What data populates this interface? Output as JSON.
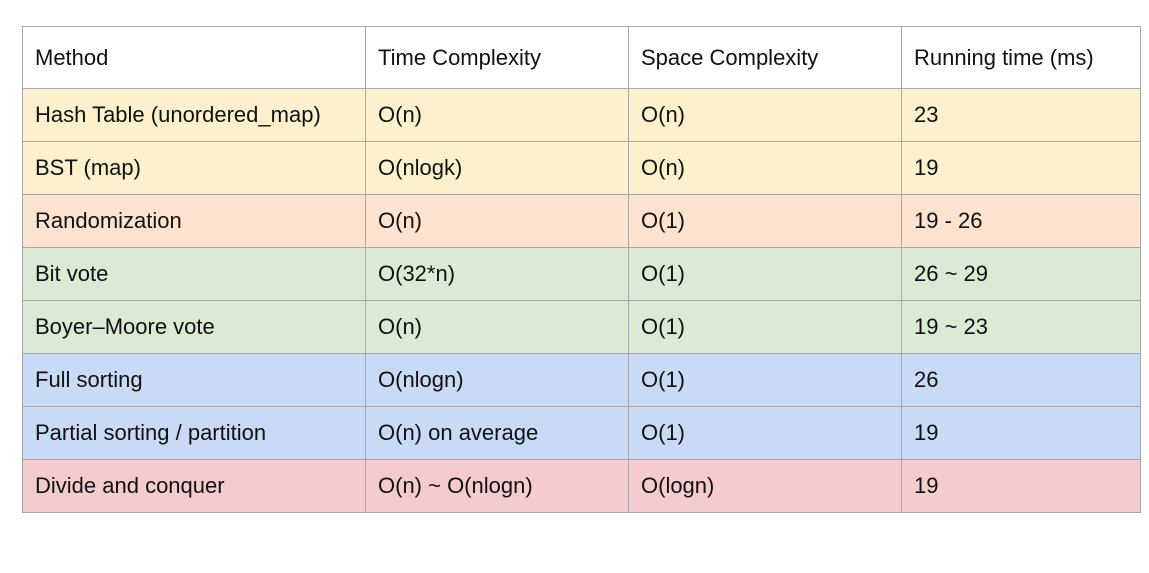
{
  "table": {
    "headers": [
      "Method",
      "Time Complexity",
      "Space Complexity",
      "Running time (ms)"
    ],
    "rows": [
      {
        "cells": [
          "Hash Table (unordered_map)",
          "O(n)",
          "O(n)",
          "23"
        ],
        "color": "#fdf1cd"
      },
      {
        "cells": [
          "BST (map)",
          "O(nlogk)",
          "O(n)",
          "19"
        ],
        "color": "#fdf1cd"
      },
      {
        "cells": [
          "Randomization",
          "O(n)",
          "O(1)",
          "19 - 26"
        ],
        "color": "#fbe3cf"
      },
      {
        "cells": [
          "Bit vote",
          "O(32*n)",
          "O(1)",
          "26 ~ 29"
        ],
        "color": "#dbe9d5"
      },
      {
        "cells": [
          "Boyer–Moore vote",
          "O(n)",
          "O(1)",
          "19 ~ 23"
        ],
        "color": "#dbe9d5"
      },
      {
        "cells": [
          "Full sorting",
          "O(nlogn)",
          "O(1)",
          "26"
        ],
        "color": "#c9daf6"
      },
      {
        "cells": [
          "Partial sorting / partition",
          "O(n) on average",
          "O(1)",
          "19"
        ],
        "color": "#c9daf6"
      },
      {
        "cells": [
          "Divide and conquer",
          "O(n) ~ O(nlogn)",
          "O(logn)",
          "19"
        ],
        "color": "#f4ccd0"
      }
    ]
  }
}
